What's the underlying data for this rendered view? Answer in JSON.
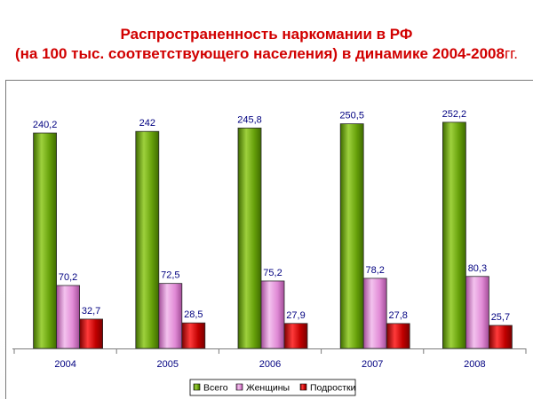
{
  "slide": {
    "title_line1": "Распространенность наркомании в РФ",
    "title_line2_main": "(на 100 тыс. соответствующего населения) в динамике 2004-2008",
    "title_line2_suffix": "гг."
  },
  "chart_data": {
    "type": "bar",
    "title": "Распространенность наркомании в РФ (на 100 тыс. соответствующего населения) в динамике 2004-2008гг.",
    "categories": [
      "2004",
      "2005",
      "2006",
      "2007",
      "2008"
    ],
    "series": [
      {
        "name": "Всего",
        "values": [
          240.2,
          242,
          245.8,
          250.5,
          252.2
        ],
        "labels": [
          "240,2",
          "242",
          "245,8",
          "250,5",
          "252,2"
        ],
        "color": "#66a00a",
        "color_light": "#9ed13d",
        "color_dark": "#3f6b00"
      },
      {
        "name": "Женщины",
        "values": [
          70.2,
          72.5,
          75.2,
          78.2,
          80.3
        ],
        "labels": [
          "70,2",
          "72,5",
          "75,2",
          "78,2",
          "80,3"
        ],
        "color": "#e18bd6",
        "color_light": "#f3c2ee",
        "color_dark": "#a24d98"
      },
      {
        "name": "Подростки",
        "values": [
          32.7,
          28.5,
          27.9,
          27.8,
          25.7
        ],
        "labels": [
          "32,7",
          "28,5",
          "27,9",
          "27,8",
          "25,7"
        ],
        "color": "#c00000",
        "color_light": "#ff3a3a",
        "color_dark": "#7a0000"
      }
    ],
    "ylim": [
      0,
      260
    ],
    "grid": false,
    "legend_position": "bottom-right"
  }
}
